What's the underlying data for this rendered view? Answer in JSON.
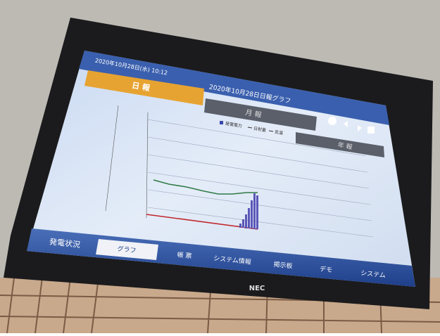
{
  "header": {
    "datetime": "2020年10月28日(水) 10:12",
    "title": "2020年10月28日日報グラフ"
  },
  "report_tabs": [
    "日 報",
    "月 報",
    "年 報"
  ],
  "legend": [
    "発電電力",
    "日射量",
    "気温"
  ],
  "nav": [
    "発電状況",
    "グラフ",
    "帳 票",
    "システム情報",
    "掲示板",
    "デモ",
    "システム"
  ],
  "brand": "NEC"
}
